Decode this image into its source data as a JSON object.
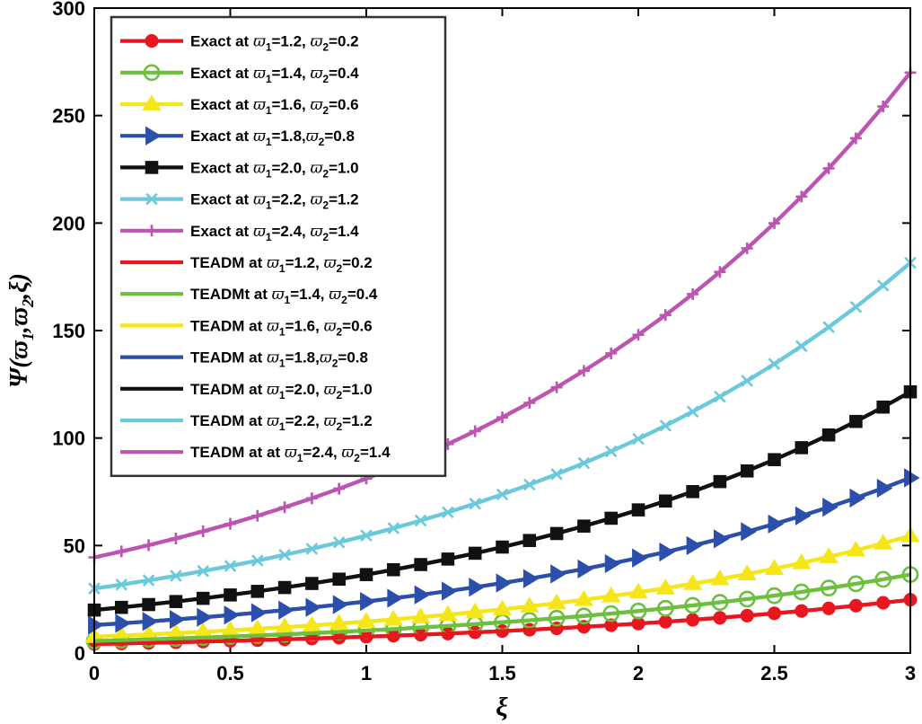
{
  "chart_data": {
    "type": "line",
    "title": "",
    "xlabel": "ξ",
    "ylabel": "Ψ(ϖ1,ϖ2,ξ)",
    "xlim": [
      0,
      3
    ],
    "ylim": [
      0,
      300
    ],
    "xticks": [
      0,
      0.5,
      1,
      1.5,
      2,
      2.5,
      3
    ],
    "xtick_labels": [
      "0",
      "0.5",
      "1",
      "1.5",
      "2",
      "2.5",
      "3"
    ],
    "yticks": [
      0,
      50,
      100,
      150,
      200,
      250,
      300
    ],
    "ytick_labels": [
      "0",
      "50",
      "100",
      "150",
      "200",
      "250",
      "300"
    ],
    "legend_position": "top-left",
    "x": [
      0,
      0.1,
      0.2,
      0.3,
      0.4,
      0.5,
      0.6,
      0.7,
      0.8,
      0.9,
      1.0,
      1.1,
      1.2,
      1.3,
      1.4,
      1.5,
      1.6,
      1.7,
      1.8,
      1.9,
      2.0,
      2.1,
      2.2,
      2.3,
      2.4,
      2.5,
      2.6,
      2.7,
      2.8,
      2.9,
      3.0
    ],
    "series": [
      {
        "name": "Exact at ϖ1=1.2, ϖ2=0.2",
        "color": "#e8161f",
        "marker": "circle-filled",
        "start": 4.2,
        "end": 24.8,
        "legend": {
          "prefix": "Exact at ",
          "v1": "=1.2, ",
          "v2": "=0.2"
        }
      },
      {
        "name": "Exact at ϖ1=1.4, ϖ2=0.4",
        "color": "#6cbf3f",
        "marker": "circle-open",
        "start": 5.6,
        "end": 36.5,
        "legend": {
          "prefix": "Exact at ",
          "v1": "=1.4, ",
          "v2": "=0.4"
        }
      },
      {
        "name": "Exact at ϖ1=1.6, ϖ2=0.6",
        "color": "#f5e61a",
        "marker": "triangle-up",
        "start": 7.6,
        "end": 54.5,
        "legend": {
          "prefix": "Exact at ",
          "v1": "=1.6, ",
          "v2": "=0.6"
        }
      },
      {
        "name": "Exact at ϖ1=1.8,ϖ2=0.8",
        "color": "#2b4faa",
        "marker": "triangle-right",
        "start": 13.0,
        "end": 81.5,
        "legend": {
          "prefix": "Exact at ",
          "v1": "=1.8,",
          "v2": "=0.8"
        }
      },
      {
        "name": "Exact at ϖ1=2.0, ϖ2=1.0",
        "color": "#111111",
        "marker": "square",
        "start": 20.0,
        "end": 121.5,
        "legend": {
          "prefix": "Exact at ",
          "v1": "=2.0, ",
          "v2": "=1.0"
        }
      },
      {
        "name": "Exact at ϖ1=2.2, ϖ2=1.2",
        "color": "#6cc9dc",
        "marker": "x",
        "start": 30.0,
        "end": 181.5,
        "legend": {
          "prefix": "Exact at ",
          "v1": "=2.2, ",
          "v2": "=1.2"
        }
      },
      {
        "name": "Exact at ϖ1=2.4, ϖ2=1.4",
        "color": "#bb55b0",
        "marker": "plus",
        "start": 44.5,
        "end": 270.0,
        "legend": {
          "prefix": "Exact at ",
          "v1": "=2.4, ",
          "v2": "=1.4"
        }
      },
      {
        "name": "TEADM at ϖ1=1.2, ϖ2=0.2",
        "color": "#e8161f",
        "marker": "none",
        "start": 4.2,
        "end": 24.8,
        "legend": {
          "prefix": "TEADM at ",
          "v1": "=1.2, ",
          "v2": "=0.2"
        }
      },
      {
        "name": "TEADMt at ϖ1=1.4, ϖ2=0.4",
        "color": "#6cbf3f",
        "marker": "none",
        "start": 5.6,
        "end": 36.5,
        "legend": {
          "prefix": "TEADMt at ",
          "v1": "=1.4, ",
          "v2": "=0.4"
        }
      },
      {
        "name": "TEADM at ϖ1=1.6, ϖ2=0.6",
        "color": "#f5e61a",
        "marker": "none",
        "start": 7.6,
        "end": 54.5,
        "legend": {
          "prefix": "TEADM at ",
          "v1": "=1.6, ",
          "v2": "=0.6"
        }
      },
      {
        "name": "TEADM at ϖ1=1.8,ϖ2=0.8",
        "color": "#2b4faa",
        "marker": "none",
        "start": 13.0,
        "end": 81.5,
        "legend": {
          "prefix": "TEADM at ",
          "v1": "=1.8,",
          "v2": "=0.8"
        }
      },
      {
        "name": "TEADM at ϖ1=2.0, ϖ2=1.0",
        "color": "#111111",
        "marker": "none",
        "start": 20.0,
        "end": 121.5,
        "legend": {
          "prefix": "TEADM at ",
          "v1": "=2.0, ",
          "v2": "=1.0"
        }
      },
      {
        "name": "TEADM at ϖ1=2.2, ϖ2=1.2",
        "color": "#6cc9dc",
        "marker": "none",
        "start": 30.0,
        "end": 181.5,
        "legend": {
          "prefix": "TEADM at ",
          "v1": "=2.2, ",
          "v2": "=1.2"
        }
      },
      {
        "name": "TEADM at at ϖ1=2.4, ϖ2=1.4",
        "color": "#bb55b0",
        "marker": "none",
        "start": 44.5,
        "end": 270.0,
        "legend": {
          "prefix": "TEADM at at ",
          "v1": "=2.4, ",
          "v2": "=1.4"
        }
      }
    ]
  }
}
